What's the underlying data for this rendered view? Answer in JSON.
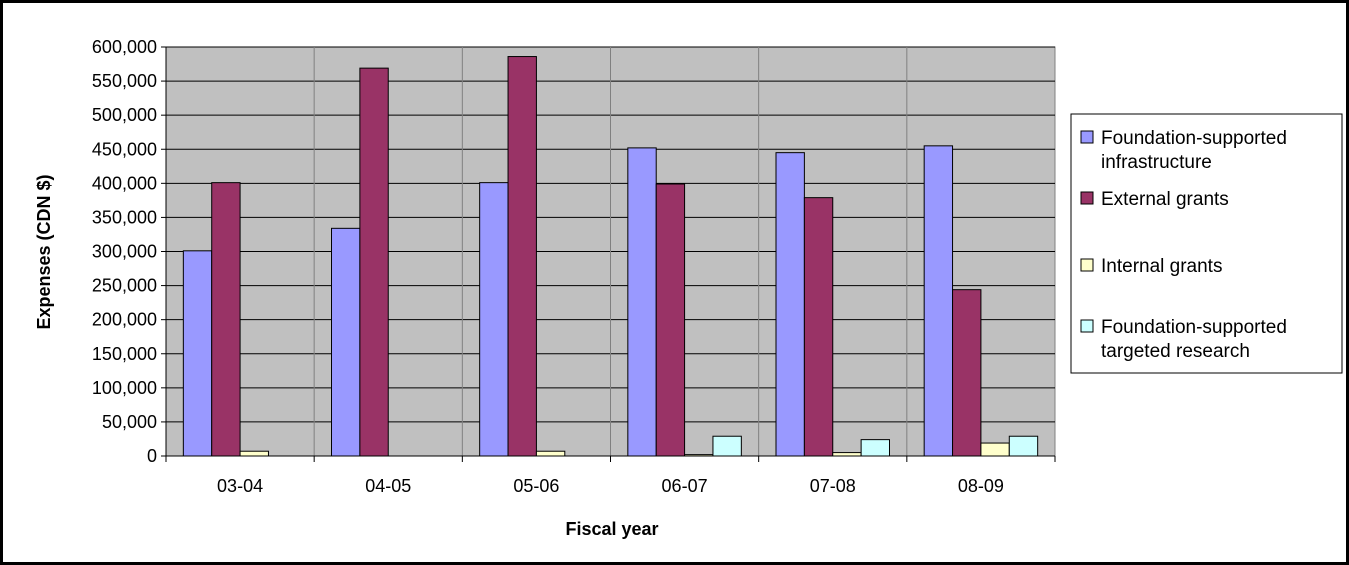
{
  "chart_data": {
    "type": "bar",
    "title": "",
    "xlabel": "Fiscal year",
    "ylabel": "Expenses (CDN $)",
    "categories": [
      "03-04",
      "04-05",
      "05-06",
      "06-07",
      "07-08",
      "08-09"
    ],
    "series": [
      {
        "name": "Foundation-supported infrastructure",
        "legend_lines": [
          "Foundation-supported",
          "infrastructure"
        ],
        "color": "#9999FF",
        "values": [
          301000,
          334000,
          401000,
          452000,
          445000,
          455000
        ]
      },
      {
        "name": "External grants",
        "legend_lines": [
          "External grants"
        ],
        "color": "#993366",
        "values": [
          401000,
          569000,
          586000,
          399000,
          379000,
          244000
        ]
      },
      {
        "name": "Internal grants",
        "legend_lines": [
          "Internal grants"
        ],
        "color": "#FFFFCC",
        "values": [
          7000,
          0,
          7000,
          2000,
          5000,
          19000
        ]
      },
      {
        "name": "Foundation-supported targeted research",
        "legend_lines": [
          "Foundation-supported",
          "targeted research"
        ],
        "color": "#CCFFFF",
        "values": [
          0,
          0,
          0,
          29000,
          24000,
          29000
        ]
      }
    ],
    "ylim": [
      0,
      600000
    ],
    "yticks": [
      0,
      50000,
      100000,
      150000,
      200000,
      250000,
      300000,
      350000,
      400000,
      450000,
      500000,
      550000,
      600000
    ],
    "ytick_labels": [
      "0",
      "50,000",
      "100,000",
      "150,000",
      "200,000",
      "250,000",
      "300,000",
      "350,000",
      "400,000",
      "450,000",
      "500,000",
      "550,000",
      "600,000"
    ],
    "grid": true,
    "plot_background": "#C0C0C0",
    "legend_position": "right"
  }
}
